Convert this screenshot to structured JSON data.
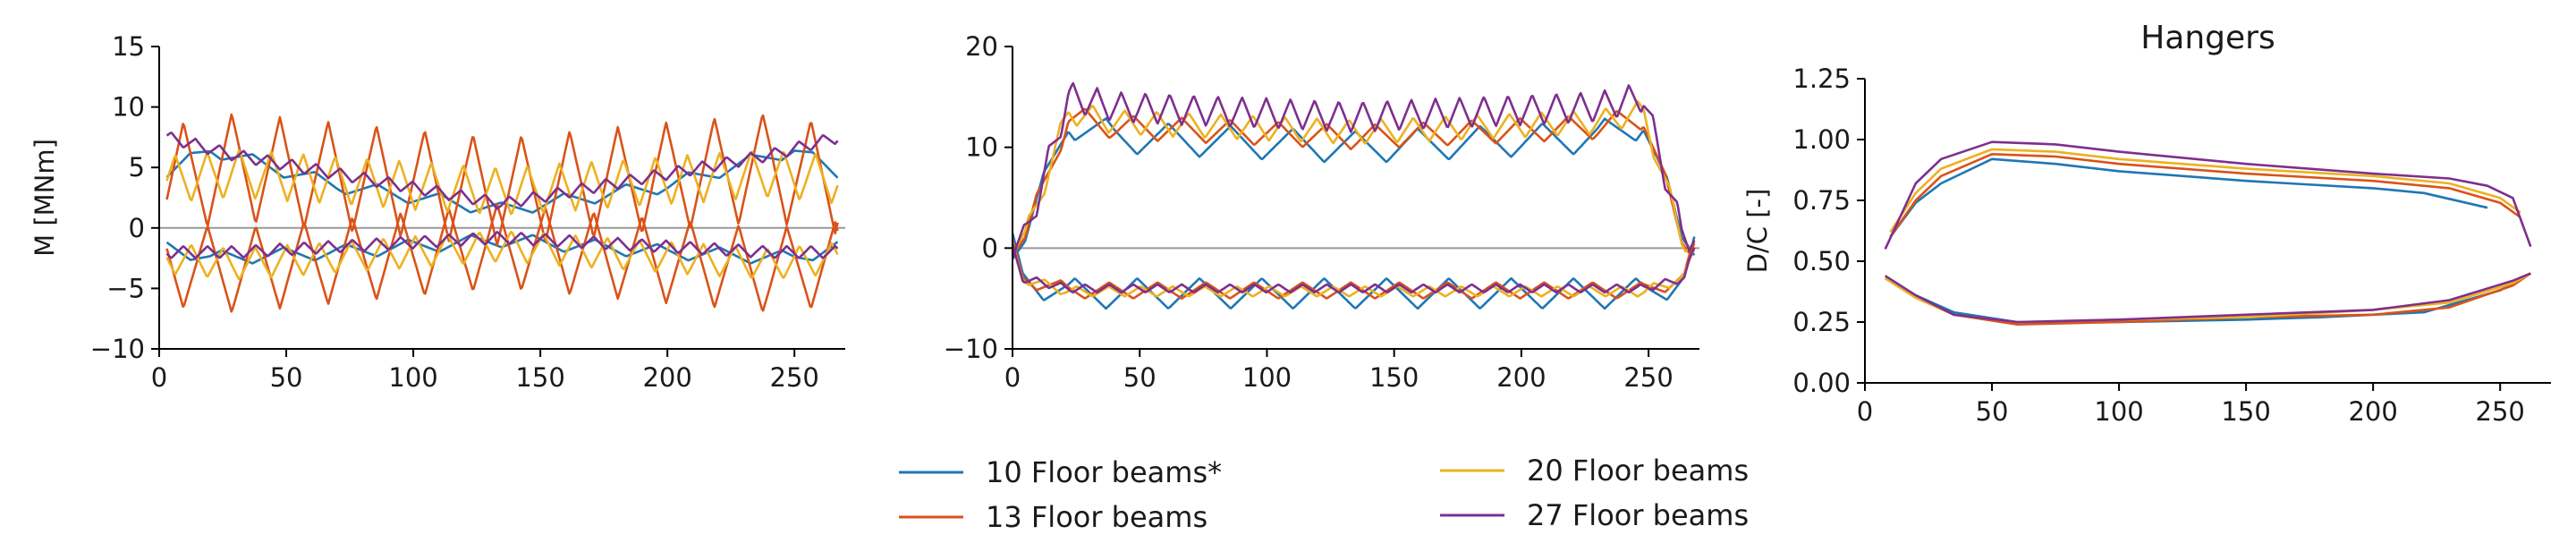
{
  "colors": {
    "10 Floor beams*": "#1f77b4",
    "13 Floor beams": "#d95319",
    "20 Floor beams": "#edb120",
    "27 Floor beams": "#7e2f8e",
    "axis": "#000000",
    "zero_line": "#999999"
  },
  "legend": {
    "items": [
      "10 Floor beams*",
      "13 Floor beams",
      "20 Floor beams",
      "27 Floor beams"
    ],
    "placement": "bottom-center"
  },
  "chart_data": [
    {
      "type": "line",
      "title": "",
      "xlabel": "",
      "ylabel": "M [MNm]",
      "xlim": [
        0,
        270
      ],
      "ylim": [
        -10,
        15
      ],
      "xticks": [
        "0",
        "50",
        "100",
        "150",
        "200",
        "250"
      ],
      "yticks": [
        "−10",
        "−5",
        "0",
        "5",
        "10",
        "15"
      ],
      "zero_line": true,
      "grid": false,
      "note_values": "upper and lower envelopes along the span, values estimated",
      "series": [
        {
          "name": "10 Floor beams*",
          "period": 24.5,
          "upper_base": [
            [
              3,
              4.5
            ],
            [
              20,
              6.5
            ],
            [
              70,
              3.5
            ],
            [
              135,
              1.5
            ],
            [
              200,
              3.5
            ],
            [
              250,
              6.5
            ],
            [
              267,
              4.5
            ]
          ],
          "upper_amp": 0.6,
          "lower_base": [
            [
              3,
              -1.5
            ],
            [
              20,
              -2.5
            ],
            [
              70,
              -2
            ],
            [
              135,
              -1
            ],
            [
              200,
              -2
            ],
            [
              250,
              -2.5
            ],
            [
              267,
              -1.5
            ]
          ],
          "lower_amp": 0.6
        },
        {
          "name": "13 Floor beams",
          "period": 19,
          "upper_base": [
            [
              3,
              4
            ],
            [
              30,
              5
            ],
            [
              135,
              3
            ],
            [
              240,
              5
            ],
            [
              267,
              4
            ]
          ],
          "upper_amp": 4.5,
          "lower_base": [
            [
              3,
              -3
            ],
            [
              30,
              -3.5
            ],
            [
              135,
              -1.5
            ],
            [
              240,
              -3.5
            ],
            [
              267,
              -3
            ]
          ],
          "lower_amp": 3.5
        },
        {
          "name": "20 Floor beams",
          "period": 12.6,
          "upper_base": [
            [
              3,
              4
            ],
            [
              30,
              4.5
            ],
            [
              135,
              3
            ],
            [
              240,
              4.5
            ],
            [
              267,
              4
            ]
          ],
          "upper_amp": 2.0,
          "lower_base": [
            [
              3,
              -2.5
            ],
            [
              30,
              -3
            ],
            [
              135,
              -1.5
            ],
            [
              240,
              -3
            ],
            [
              267,
              -2.5
            ]
          ],
          "lower_amp": 1.3
        },
        {
          "name": "27 Floor beams",
          "period": 9.5,
          "upper_base": [
            [
              3,
              7.5
            ],
            [
              30,
              6
            ],
            [
              135,
              2
            ],
            [
              240,
              6
            ],
            [
              267,
              7.5
            ]
          ],
          "upper_amp": 0.5,
          "lower_base": [
            [
              3,
              -2
            ],
            [
              30,
              -2
            ],
            [
              135,
              -0.8
            ],
            [
              240,
              -2
            ],
            [
              267,
              -2
            ]
          ],
          "lower_amp": 0.5
        }
      ]
    },
    {
      "type": "line",
      "title": "",
      "xlabel": "",
      "ylabel": "",
      "xlim": [
        0,
        270
      ],
      "ylim": [
        -10,
        20
      ],
      "xticks": [
        "0",
        "50",
        "100",
        "150",
        "200",
        "250"
      ],
      "yticks": [
        "−10",
        "0",
        "10",
        "20"
      ],
      "zero_line": true,
      "grid": false,
      "note_values": "upper and lower envelopes along the span, values estimated",
      "series": [
        {
          "name": "10 Floor beams*",
          "period": 24.5,
          "upper_base": [
            [
              0,
              0.5
            ],
            [
              5,
              1
            ],
            [
              22,
              12.5
            ],
            [
              40,
              11
            ],
            [
              135,
              10
            ],
            [
              230,
              11
            ],
            [
              248,
              12.5
            ],
            [
              263,
              1
            ],
            [
              268,
              0.5
            ]
          ],
          "upper_amp": 1.6,
          "lower_base": [
            [
              0,
              0
            ],
            [
              4,
              -3
            ],
            [
              22,
              -4.5
            ],
            [
              135,
              -4.5
            ],
            [
              248,
              -4.5
            ],
            [
              264,
              -3
            ],
            [
              268,
              0
            ]
          ],
          "lower_amp": 1.5
        },
        {
          "name": "13 Floor beams",
          "period": 19,
          "upper_base": [
            [
              0,
              0.5
            ],
            [
              5,
              1
            ],
            [
              22,
              13
            ],
            [
              40,
              12
            ],
            [
              135,
              11
            ],
            [
              230,
              12
            ],
            [
              248,
              13
            ],
            [
              263,
              1
            ],
            [
              268,
              0.5
            ]
          ],
          "upper_amp": 1.2,
          "lower_base": [
            [
              0,
              0
            ],
            [
              4,
              -3
            ],
            [
              22,
              -4.2
            ],
            [
              135,
              -4.2
            ],
            [
              248,
              -4.2
            ],
            [
              264,
              -3
            ],
            [
              268,
              0
            ]
          ],
          "lower_amp": 0.8
        },
        {
          "name": "20 Floor beams",
          "period": 12.6,
          "upper_base": [
            [
              0,
              0.5
            ],
            [
              5,
              1
            ],
            [
              22,
              13.5
            ],
            [
              40,
              12.5
            ],
            [
              135,
              11.5
            ],
            [
              230,
              12.5
            ],
            [
              248,
              13.5
            ],
            [
              263,
              1
            ],
            [
              268,
              0.5
            ]
          ],
          "upper_amp": 1.2,
          "lower_base": [
            [
              0,
              0
            ],
            [
              4,
              -3
            ],
            [
              22,
              -4.3
            ],
            [
              135,
              -4.3
            ],
            [
              248,
              -4.3
            ],
            [
              264,
              -3
            ],
            [
              268,
              0
            ]
          ],
          "lower_amp": 0.5
        },
        {
          "name": "27 Floor beams",
          "period": 9.5,
          "upper_base": [
            [
              0,
              0.5
            ],
            [
              5,
              1
            ],
            [
              22,
              15
            ],
            [
              40,
              14
            ],
            [
              135,
              13
            ],
            [
              230,
              14
            ],
            [
              248,
              15
            ],
            [
              263,
              1.5
            ],
            [
              268,
              1
            ]
          ],
          "upper_amp": 1.5,
          "lower_base": [
            [
              0,
              0
            ],
            [
              4,
              -3
            ],
            [
              22,
              -4
            ],
            [
              135,
              -4
            ],
            [
              248,
              -4
            ],
            [
              264,
              -3
            ],
            [
              268,
              0
            ]
          ],
          "lower_amp": 0.4
        }
      ]
    },
    {
      "type": "line",
      "title": "Hangers",
      "xlabel": "",
      "ylabel": "D/C [-]",
      "xlim": [
        0,
        270
      ],
      "ylim": [
        0,
        1.25
      ],
      "xticks": [
        "0",
        "50",
        "100",
        "150",
        "200",
        "250"
      ],
      "yticks": [
        "0.00",
        "0.25",
        "0.50",
        "0.75",
        "1.00",
        "1.25"
      ],
      "zero_line": false,
      "grid": false,
      "series": [
        {
          "name": "10 Floor beams*",
          "upper": [
            [
              10,
              0.6
            ],
            [
              20,
              0.74
            ],
            [
              30,
              0.82
            ],
            [
              50,
              0.92
            ],
            [
              75,
              0.9
            ],
            [
              100,
              0.87
            ],
            [
              150,
              0.83
            ],
            [
              200,
              0.8
            ],
            [
              220,
              0.78
            ],
            [
              245,
              0.72
            ]
          ],
          "lower": [
            [
              8,
              0.43
            ],
            [
              20,
              0.36
            ],
            [
              35,
              0.29
            ],
            [
              60,
              0.25
            ],
            [
              100,
              0.25
            ],
            [
              150,
              0.26
            ],
            [
              180,
              0.27
            ],
            [
              200,
              0.28
            ],
            [
              220,
              0.29
            ],
            [
              250,
              0.38
            ],
            [
              262,
              0.45
            ]
          ]
        },
        {
          "name": "13 Floor beams",
          "upper": [
            [
              10,
              0.6
            ],
            [
              20,
              0.75
            ],
            [
              30,
              0.85
            ],
            [
              50,
              0.94
            ],
            [
              75,
              0.93
            ],
            [
              100,
              0.9
            ],
            [
              150,
              0.86
            ],
            [
              200,
              0.83
            ],
            [
              230,
              0.8
            ],
            [
              250,
              0.74
            ],
            [
              258,
              0.68
            ]
          ],
          "lower": [
            [
              8,
              0.43
            ],
            [
              20,
              0.35
            ],
            [
              35,
              0.28
            ],
            [
              60,
              0.24
            ],
            [
              100,
              0.25
            ],
            [
              150,
              0.27
            ],
            [
              200,
              0.28
            ],
            [
              230,
              0.31
            ],
            [
              255,
              0.4
            ],
            [
              262,
              0.45
            ]
          ]
        },
        {
          "name": "20 Floor beams",
          "upper": [
            [
              10,
              0.62
            ],
            [
              20,
              0.78
            ],
            [
              30,
              0.88
            ],
            [
              50,
              0.96
            ],
            [
              75,
              0.95
            ],
            [
              100,
              0.92
            ],
            [
              150,
              0.88
            ],
            [
              200,
              0.85
            ],
            [
              230,
              0.82
            ],
            [
              250,
              0.76
            ],
            [
              258,
              0.7
            ]
          ],
          "lower": [
            [
              8,
              0.43
            ],
            [
              20,
              0.35
            ],
            [
              35,
              0.28
            ],
            [
              60,
              0.25
            ],
            [
              100,
              0.26
            ],
            [
              150,
              0.27
            ],
            [
              200,
              0.3
            ],
            [
              230,
              0.33
            ],
            [
              255,
              0.41
            ],
            [
              262,
              0.45
            ]
          ]
        },
        {
          "name": "27 Floor beams",
          "upper": [
            [
              8,
              0.55
            ],
            [
              20,
              0.82
            ],
            [
              30,
              0.92
            ],
            [
              50,
              0.99
            ],
            [
              75,
              0.98
            ],
            [
              100,
              0.95
            ],
            [
              150,
              0.9
            ],
            [
              200,
              0.86
            ],
            [
              230,
              0.84
            ],
            [
              245,
              0.81
            ],
            [
              255,
              0.76
            ],
            [
              262,
              0.56
            ]
          ],
          "lower": [
            [
              8,
              0.44
            ],
            [
              20,
              0.36
            ],
            [
              35,
              0.28
            ],
            [
              60,
              0.25
            ],
            [
              100,
              0.26
            ],
            [
              150,
              0.28
            ],
            [
              200,
              0.3
            ],
            [
              230,
              0.34
            ],
            [
              255,
              0.42
            ],
            [
              262,
              0.45
            ]
          ]
        }
      ]
    }
  ]
}
